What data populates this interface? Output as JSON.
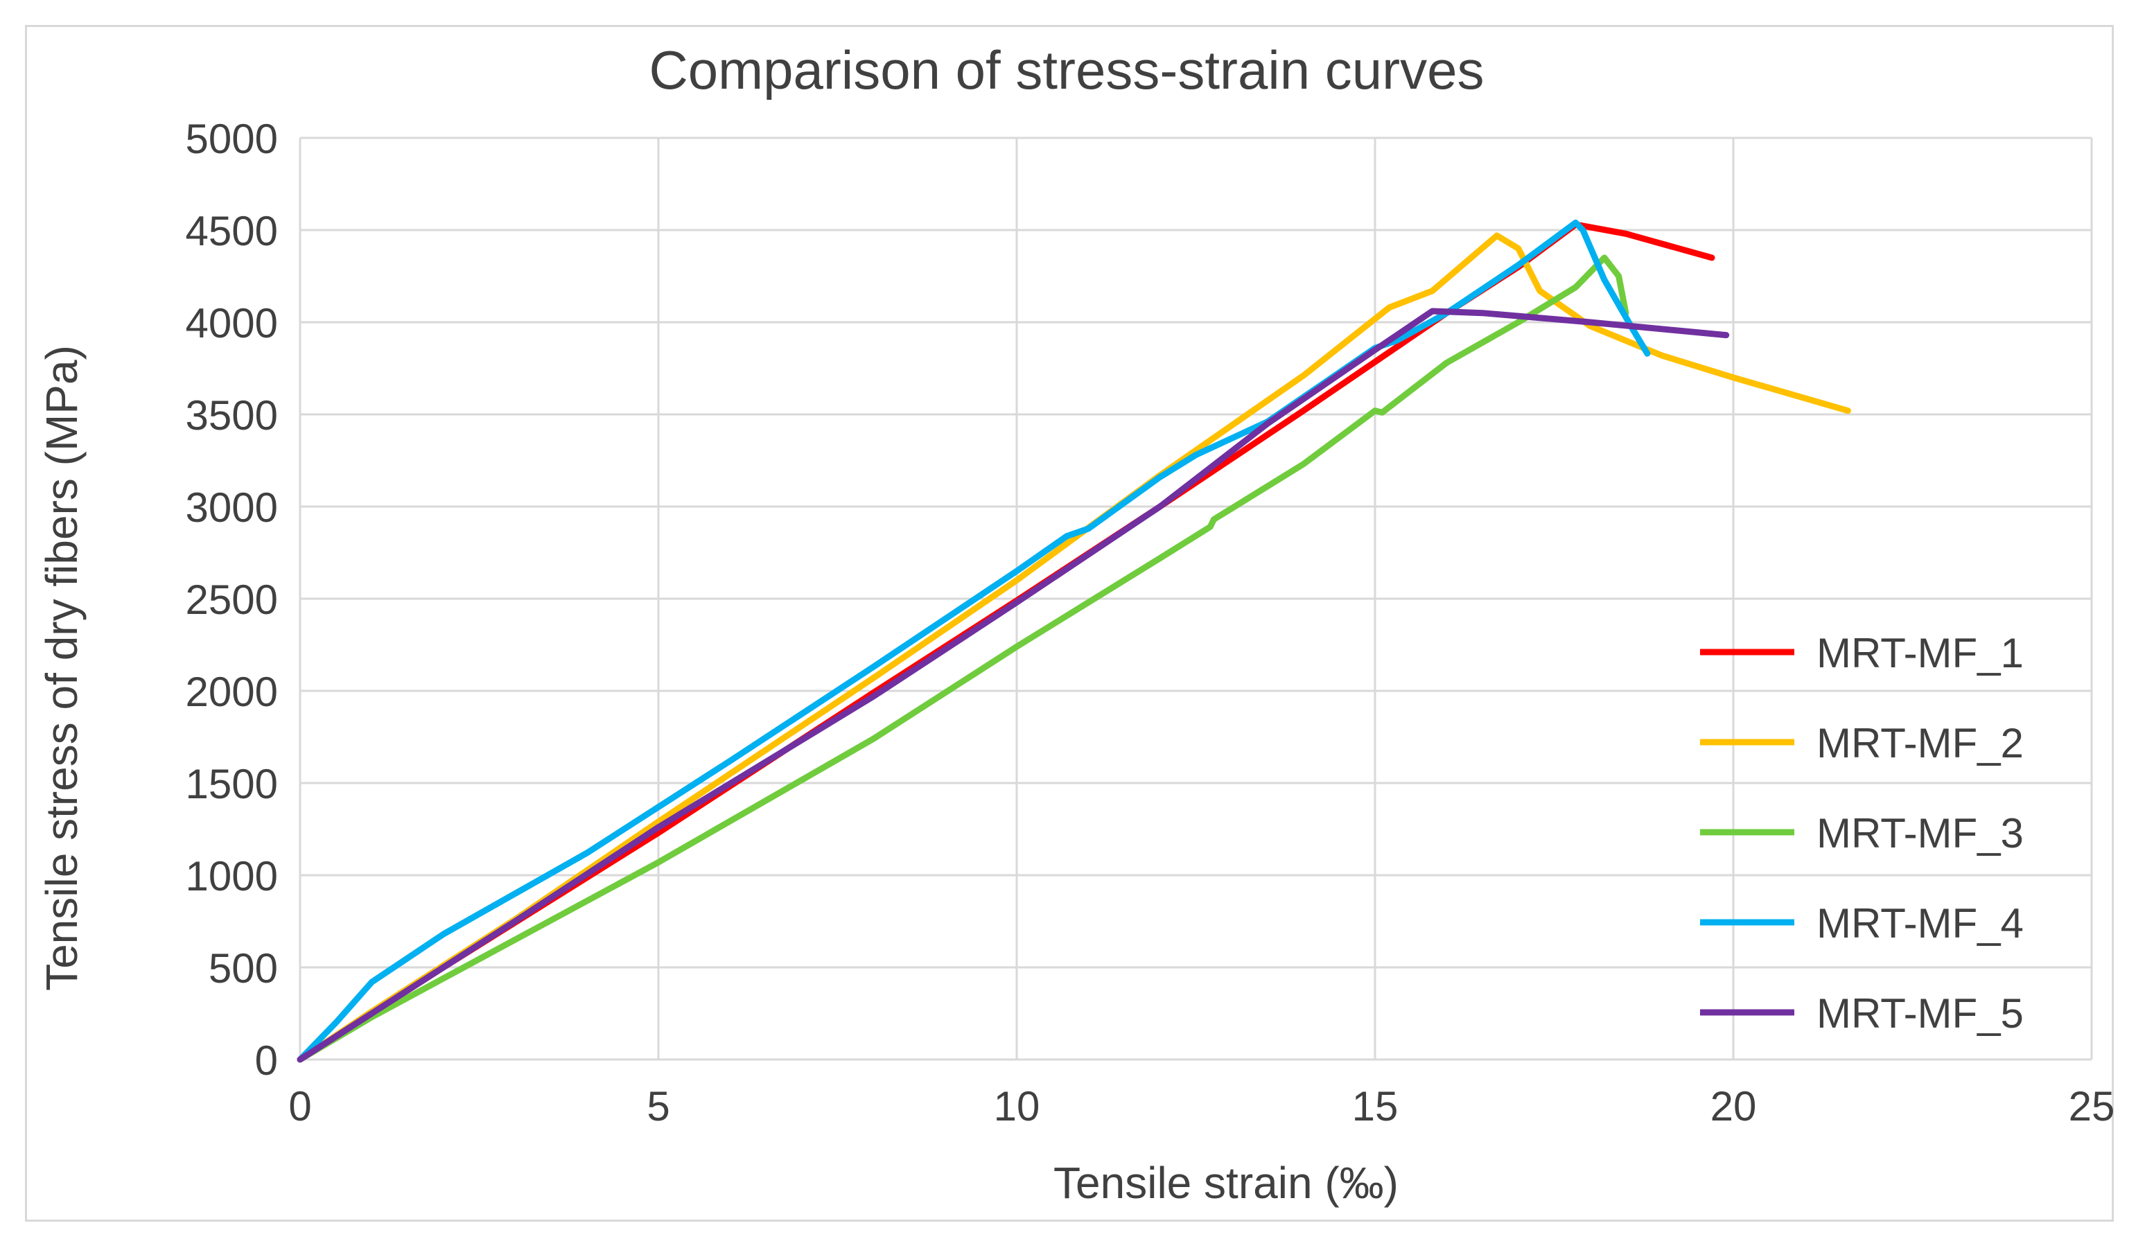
{
  "chart_data": {
    "type": "line",
    "title": "Comparison of stress-strain curves",
    "xlabel": "Tensile strain (‰)",
    "ylabel": "Tensile stress of dry fibers (MPa)",
    "xlim": [
      0,
      25
    ],
    "ylim": [
      0,
      5000
    ],
    "xticks": [
      0,
      5,
      10,
      15,
      20,
      25
    ],
    "yticks": [
      0,
      500,
      1000,
      1500,
      2000,
      2500,
      3000,
      3500,
      4000,
      4500,
      5000
    ],
    "grid": true,
    "legend_position": "right",
    "series": [
      {
        "name": "MRT-MF_1",
        "color": "#ff0000",
        "points": [
          [
            0,
            0
          ],
          [
            1,
            250
          ],
          [
            2,
            500
          ],
          [
            5,
            1230
          ],
          [
            8,
            1990
          ],
          [
            10,
            2490
          ],
          [
            12,
            3000
          ],
          [
            14,
            3520
          ],
          [
            16,
            4050
          ],
          [
            17,
            4300
          ],
          [
            17.8,
            4530
          ],
          [
            18.5,
            4480
          ],
          [
            19.7,
            4350
          ]
        ]
      },
      {
        "name": "MRT-MF_2",
        "color": "#ffc000",
        "points": [
          [
            0,
            0
          ],
          [
            1,
            260
          ],
          [
            3,
            760
          ],
          [
            5,
            1290
          ],
          [
            8,
            2070
          ],
          [
            10,
            2600
          ],
          [
            12,
            3170
          ],
          [
            14,
            3710
          ],
          [
            15.2,
            4080
          ],
          [
            15.8,
            4170
          ],
          [
            16.7,
            4470
          ],
          [
            17,
            4400
          ],
          [
            17.3,
            4170
          ],
          [
            18,
            3980
          ],
          [
            19,
            3820
          ],
          [
            20,
            3700
          ],
          [
            21.6,
            3520
          ]
        ]
      },
      {
        "name": "MRT-MF_3",
        "color": "#70cc3d",
        "points": [
          [
            0,
            0
          ],
          [
            1,
            230
          ],
          [
            3,
            650
          ],
          [
            5,
            1070
          ],
          [
            8,
            1740
          ],
          [
            10,
            2240
          ],
          [
            12,
            2720
          ],
          [
            12.7,
            2890
          ],
          [
            12.75,
            2930
          ],
          [
            14,
            3230
          ],
          [
            15,
            3520
          ],
          [
            15.1,
            3510
          ],
          [
            16,
            3780
          ],
          [
            17,
            4000
          ],
          [
            17.8,
            4190
          ],
          [
            18.2,
            4350
          ],
          [
            18.4,
            4250
          ],
          [
            18.5,
            4050
          ]
        ]
      },
      {
        "name": "MRT-MF_4",
        "color": "#00b0f0",
        "points": [
          [
            0,
            0
          ],
          [
            0.5,
            200
          ],
          [
            1,
            420
          ],
          [
            2,
            680
          ],
          [
            3,
            900
          ],
          [
            4,
            1120
          ],
          [
            6,
            1620
          ],
          [
            8,
            2130
          ],
          [
            10,
            2650
          ],
          [
            10.7,
            2840
          ],
          [
            11,
            2880
          ],
          [
            12,
            3160
          ],
          [
            12.5,
            3280
          ],
          [
            13.5,
            3460
          ],
          [
            15,
            3860
          ],
          [
            15.3,
            3900
          ],
          [
            16,
            4050
          ],
          [
            17,
            4310
          ],
          [
            17.8,
            4540
          ],
          [
            17.9,
            4500
          ],
          [
            18.2,
            4230
          ],
          [
            18.6,
            3960
          ],
          [
            18.8,
            3830
          ]
        ]
      },
      {
        "name": "MRT-MF_5",
        "color": "#7030a0",
        "points": [
          [
            0,
            0
          ],
          [
            1,
            250
          ],
          [
            3,
            750
          ],
          [
            5,
            1260
          ],
          [
            8,
            1970
          ],
          [
            10,
            2480
          ],
          [
            12,
            3000
          ],
          [
            13.5,
            3450
          ],
          [
            15,
            3850
          ],
          [
            15.8,
            4060
          ],
          [
            16.5,
            4050
          ],
          [
            18,
            4000
          ],
          [
            19.9,
            3930
          ]
        ]
      }
    ]
  }
}
